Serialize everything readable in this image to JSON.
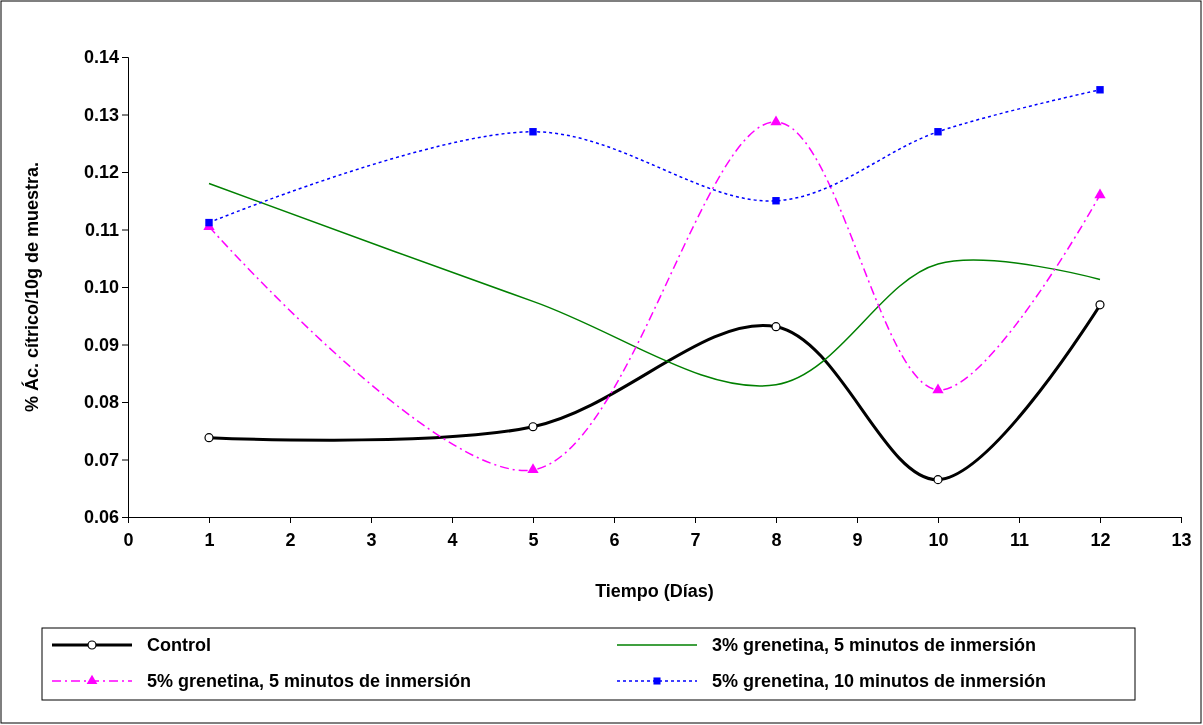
{
  "chart_data": {
    "type": "line",
    "xlabel": "Tiempo (Días)",
    "ylabel": "% Ác. cítrico/10g de muestra.",
    "xlim": [
      0,
      13
    ],
    "xticks": [
      0,
      1,
      2,
      3,
      4,
      5,
      6,
      7,
      8,
      9,
      10,
      11,
      12,
      13
    ],
    "ylim": [
      0.06,
      0.14
    ],
    "yticks": [
      {
        "value": 0.06,
        "label": "0.06"
      },
      {
        "value": 0.07,
        "label": "0.07"
      },
      {
        "value": 0.08,
        "label": "0.08"
      },
      {
        "value": 0.09,
        "label": "0.09"
      },
      {
        "value": 0.1,
        "label": "0.10"
      },
      {
        "value": 0.11,
        "label": "0.11"
      },
      {
        "value": 0.12,
        "label": "0.12"
      },
      {
        "value": 0.13,
        "label": "0.13"
      },
      {
        "value": 0.14,
        "label": "0.14"
      }
    ],
    "x": [
      1,
      5,
      8,
      10,
      12
    ],
    "grid": false,
    "legend": "bottom",
    "series": [
      {
        "name": "Control",
        "color": "#000000",
        "values": [
          0.0738,
          0.0757,
          0.0931,
          0.0665,
          0.0969
        ],
        "marker": "circle",
        "line_style": "solid"
      },
      {
        "name": "3% grenetina, 5 minutos de inmersión",
        "color": "#008000",
        "values": [
          0.118,
          0.0975,
          0.083,
          0.104,
          0.1013
        ],
        "marker": "none",
        "line_style": "solid"
      },
      {
        "name": "5% grenetina, 5 minutos de inmersión",
        "color": "#ff00ff",
        "values": [
          0.1105,
          0.0682,
          0.1287,
          0.0821,
          0.116
        ],
        "marker": "triangle",
        "line_style": "dashed"
      },
      {
        "name": "5% grenetina, 10 minutos de inmersión",
        "color": "#0000ff",
        "values": [
          0.1112,
          0.127,
          0.115,
          0.127,
          0.1343
        ],
        "marker": "square",
        "line_style": "dotted"
      }
    ]
  }
}
